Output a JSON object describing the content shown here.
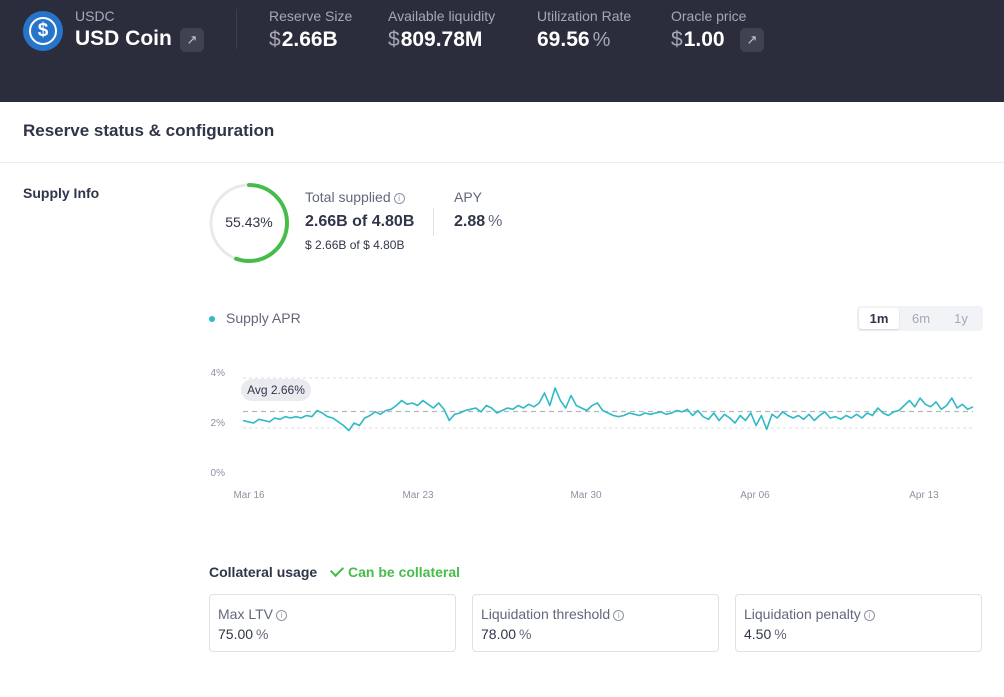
{
  "header": {
    "symbol": "USDC",
    "name": "USD Coin",
    "stats": [
      {
        "label": "Reserve Size",
        "currency": "$",
        "value": "2.66B",
        "unit": ""
      },
      {
        "label": "Available liquidity",
        "currency": "$",
        "value": "809.78M",
        "unit": ""
      },
      {
        "label": "Utilization Rate",
        "currency": "",
        "value": "69.56",
        "unit": "%"
      },
      {
        "label": "Oracle price",
        "currency": "$",
        "value": "1.00",
        "unit": ""
      }
    ]
  },
  "section_title": "Reserve status & configuration",
  "supply_info": {
    "label": "Supply Info",
    "utilization": {
      "value": 55.43,
      "text": "55.43%"
    },
    "total_supplied": {
      "label": "Total supplied",
      "value": "2.66B of 4.80B",
      "usd_currency": "$",
      "usd_value": "2.66B",
      "usd_of": "of",
      "usd_cap": "4.80B"
    },
    "apy": {
      "label": "APY",
      "value": "2.88",
      "unit": "%"
    }
  },
  "supply_apr_chart": {
    "legend": "Supply APR",
    "ranges": [
      "1m",
      "6m",
      "1y"
    ],
    "active_range": "1m",
    "avg_label": "Avg 2.66%",
    "colors": {
      "line": "#2ebac6",
      "avg": "#b4b6c0",
      "grid": "#dcdde3"
    }
  },
  "chart_data": {
    "type": "line",
    "title": "",
    "xlabel": "",
    "ylabel": "",
    "ylim": [
      0,
      4
    ],
    "yticks": [
      "0%",
      "2%",
      "4%"
    ],
    "xticks": [
      "Mar 16",
      "Mar 23",
      "Mar 30",
      "Apr 06",
      "Apr 13"
    ],
    "average": 2.66,
    "series": [
      {
        "name": "Supply APR",
        "x_start": "Mar 16",
        "x_end": "Apr 15",
        "values": [
          2.3,
          2.25,
          2.2,
          2.35,
          2.3,
          2.25,
          2.4,
          2.35,
          2.45,
          2.4,
          2.45,
          2.4,
          2.5,
          2.45,
          2.7,
          2.6,
          2.45,
          2.4,
          2.25,
          2.1,
          1.9,
          2.2,
          2.1,
          2.4,
          2.5,
          2.65,
          2.55,
          2.7,
          2.75,
          2.9,
          3.1,
          2.95,
          3.0,
          2.9,
          3.1,
          2.95,
          2.8,
          3.0,
          2.75,
          2.3,
          2.55,
          2.6,
          2.7,
          2.75,
          2.8,
          2.65,
          2.9,
          2.8,
          2.6,
          2.7,
          2.8,
          2.75,
          2.9,
          2.8,
          2.95,
          2.85,
          3.0,
          3.4,
          2.9,
          3.6,
          3.1,
          2.8,
          3.3,
          2.9,
          2.8,
          2.7,
          2.9,
          3.0,
          2.7,
          2.6,
          2.5,
          2.45,
          2.5,
          2.6,
          2.55,
          2.5,
          2.6,
          2.55,
          2.6,
          2.65,
          2.55,
          2.6,
          2.7,
          2.65,
          2.75,
          2.5,
          2.7,
          2.45,
          2.35,
          2.6,
          2.3,
          2.55,
          2.4,
          2.2,
          2.5,
          2.3,
          2.6,
          2.1,
          2.5,
          1.95,
          2.55,
          2.4,
          2.65,
          2.5,
          2.4,
          2.5,
          2.35,
          2.55,
          2.3,
          2.5,
          2.65,
          2.4,
          2.45,
          2.35,
          2.5,
          2.4,
          2.55,
          2.4,
          2.6,
          2.5,
          2.8,
          2.6,
          2.5,
          2.65,
          2.7,
          2.9,
          3.1,
          2.85,
          3.2,
          2.95,
          2.85,
          3.05,
          2.75,
          2.9,
          3.2,
          2.8,
          2.95,
          2.75,
          2.85
        ]
      }
    ]
  },
  "collateral": {
    "label": "Collateral usage",
    "status": "Can be collateral",
    "items": [
      {
        "label": "Max LTV",
        "value": "75.00",
        "unit": "%"
      },
      {
        "label": "Liquidation threshold",
        "value": "78.00",
        "unit": "%"
      },
      {
        "label": "Liquidation penalty",
        "value": "4.50",
        "unit": "%"
      }
    ]
  }
}
